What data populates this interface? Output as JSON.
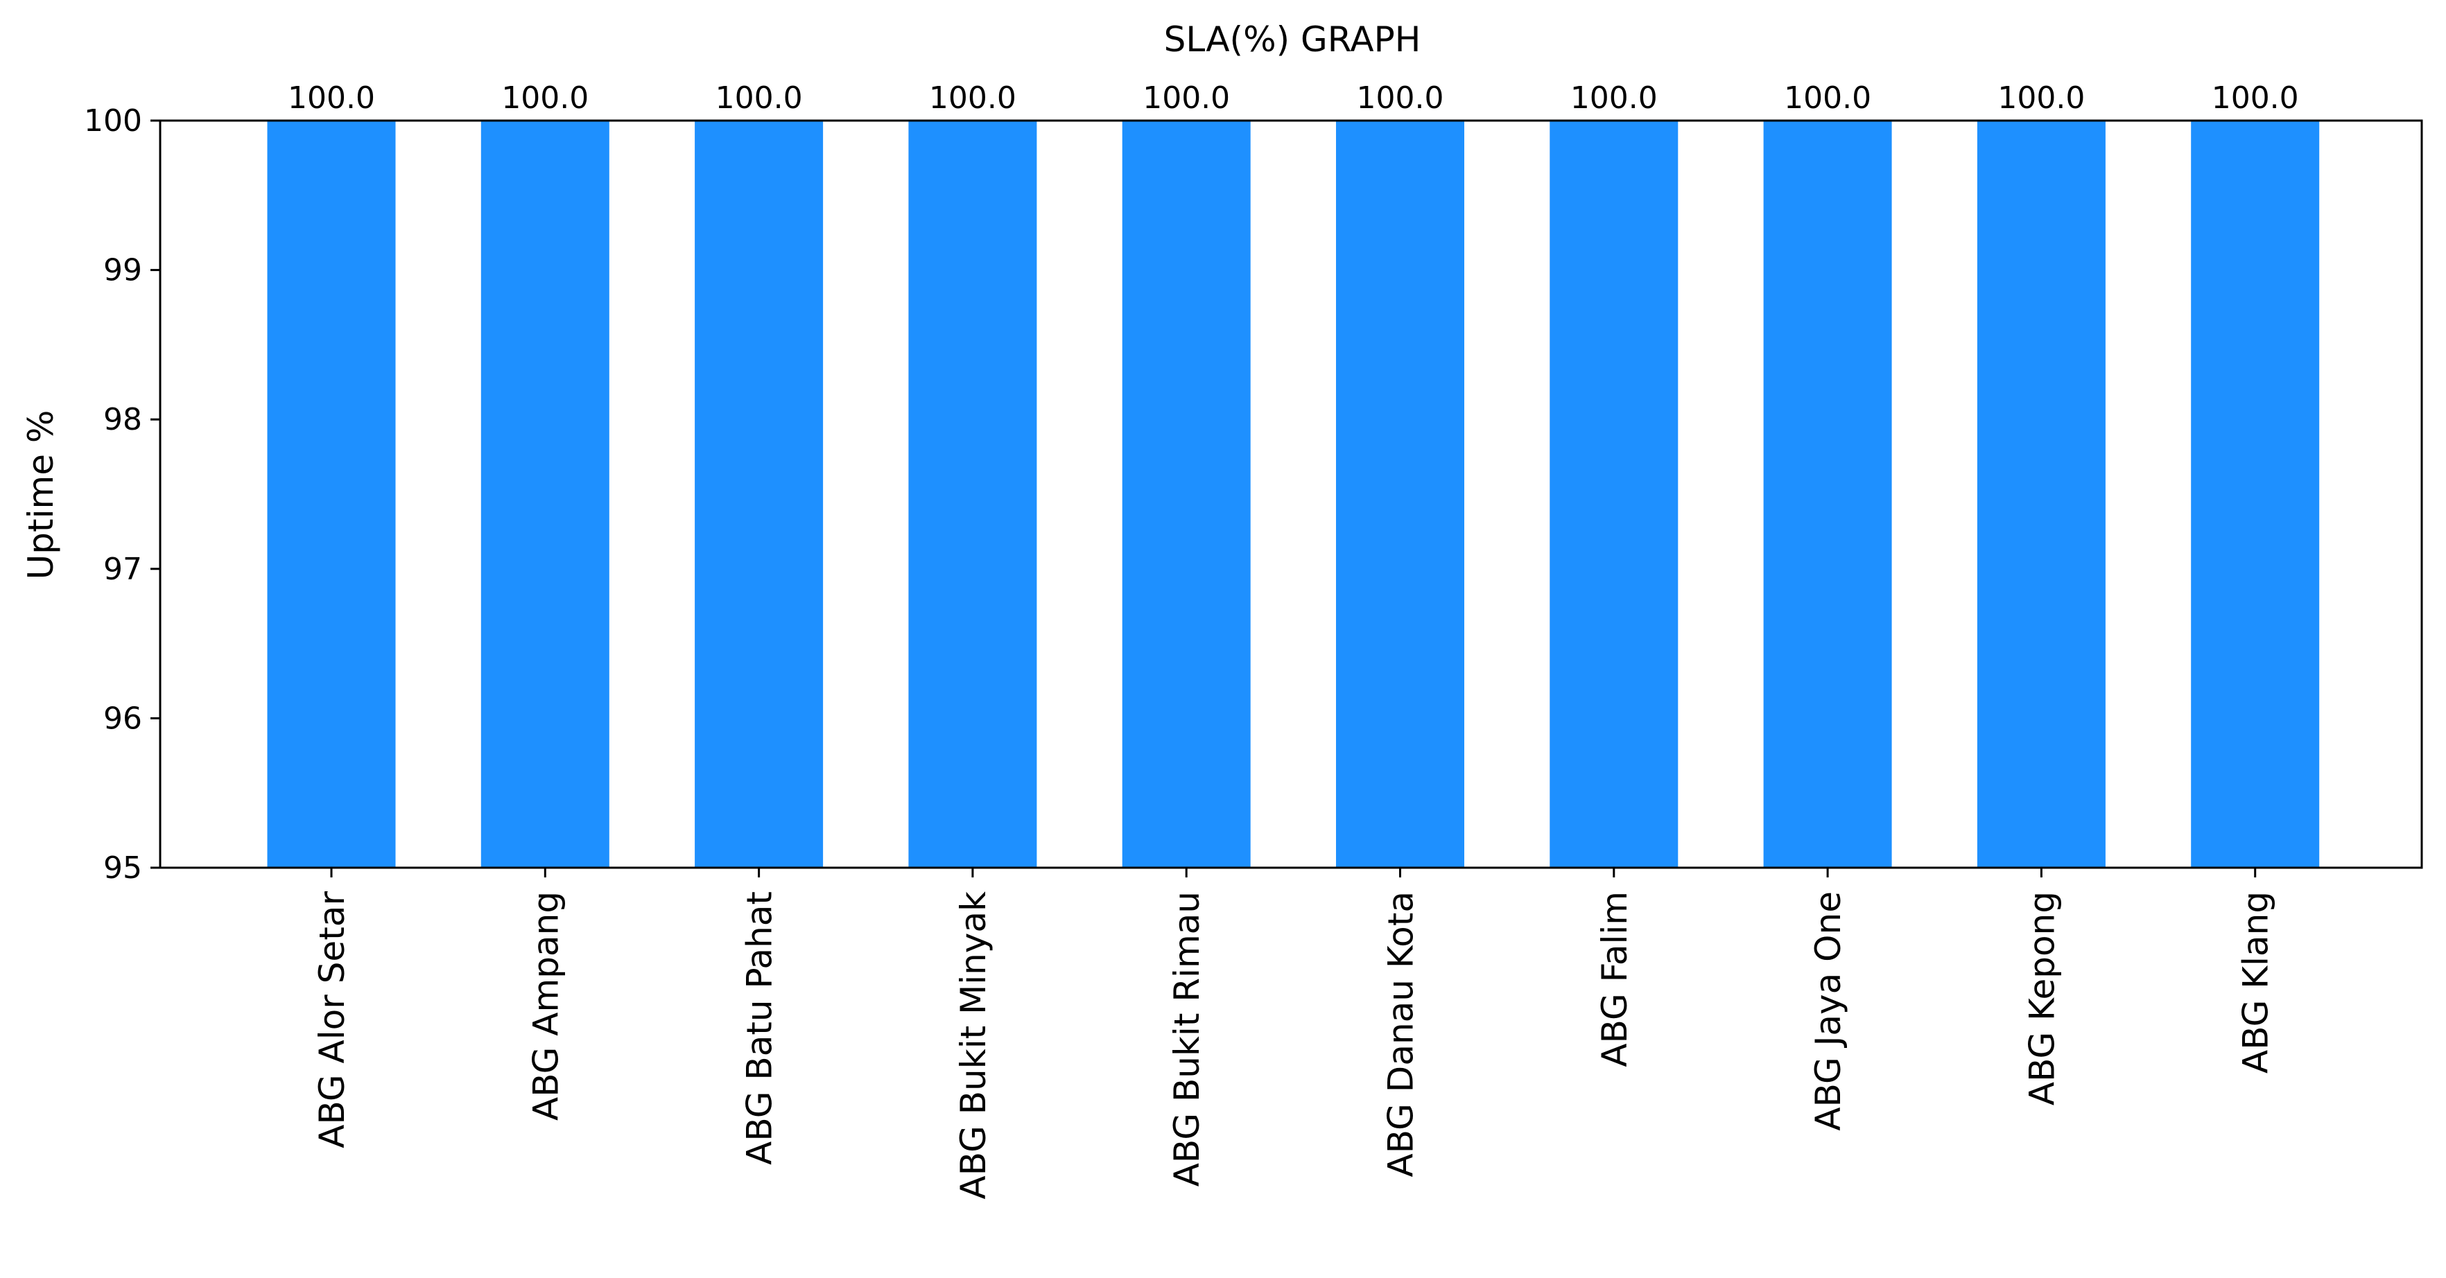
{
  "chart_data": {
    "type": "bar",
    "title": "SLA(%) GRAPH",
    "xlabel": "",
    "ylabel": "Uptime %",
    "categories": [
      "ABG Alor Setar",
      "ABG Ampang",
      "ABG Batu Pahat",
      "ABG Bukit Minyak",
      "ABG Bukit Rimau",
      "ABG Danau Kota",
      "ABG Falim",
      "ABG Jaya One",
      "ABG Kepong",
      "ABG Klang"
    ],
    "values": [
      100.0,
      100.0,
      100.0,
      100.0,
      100.0,
      100.0,
      100.0,
      100.0,
      100.0,
      100.0
    ],
    "data_labels": [
      "100.0",
      "100.0",
      "100.0",
      "100.0",
      "100.0",
      "100.0",
      "100.0",
      "100.0",
      "100.0",
      "100.0"
    ],
    "ylim": [
      95,
      100
    ],
    "yticks": [
      "95",
      "96",
      "97",
      "98",
      "99",
      "100"
    ],
    "grid": false,
    "legend": "none",
    "bar_color": "#1e90ff"
  }
}
